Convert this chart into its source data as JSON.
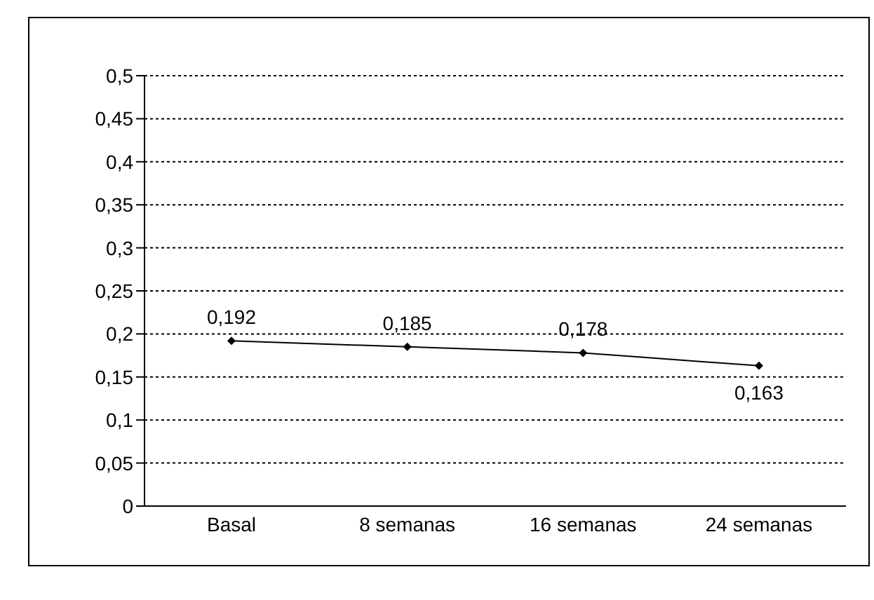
{
  "chart_data": {
    "type": "line",
    "categories": [
      "Basal",
      "8 semanas",
      "16 semanas",
      "24 semanas"
    ],
    "series": [
      {
        "color": "#000000",
        "values": [
          0.192,
          0.185,
          0.178,
          0.163
        ],
        "value_labels": [
          "0,192",
          "0,185",
          "0,178",
          "0,163"
        ]
      }
    ],
    "ylim": [
      0,
      0.5
    ],
    "yticks": [
      {
        "value": 0,
        "label": "0"
      },
      {
        "value": 0.05,
        "label": "0,05"
      },
      {
        "value": 0.1,
        "label": "0,1"
      },
      {
        "value": 0.15,
        "label": "0,15"
      },
      {
        "value": 0.2,
        "label": "0,2"
      },
      {
        "value": 0.25,
        "label": "0,25"
      },
      {
        "value": 0.3,
        "label": "0,3"
      },
      {
        "value": 0.35,
        "label": "0,35"
      },
      {
        "value": 0.4,
        "label": "0,4"
      },
      {
        "value": 0.45,
        "label": "0,45"
      },
      {
        "value": 0.5,
        "label": "0,5"
      }
    ],
    "grid": "y",
    "legend": false,
    "marker": "diamond",
    "line_style": "solid"
  }
}
